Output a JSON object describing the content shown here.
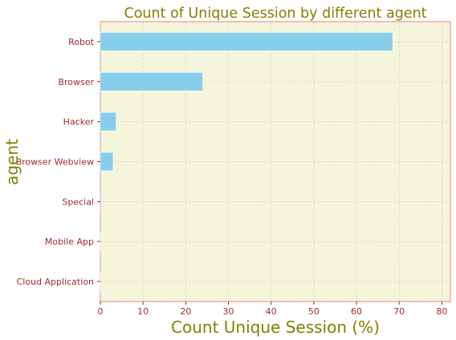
{
  "colors": {
    "plot_bg": "#f5f5dc",
    "plot_border": "#f4a6a6",
    "bar_fill": "#87ceeb",
    "special_bar_fill": "#b0c4de",
    "title_color": "#808000",
    "tick_color": "#a52a2a",
    "grid_color": "#c8dcc0"
  },
  "chart_data": {
    "type": "bar",
    "orientation": "horizontal",
    "title": "Count of Unique Session by different agent",
    "xlabel": "Count Unique Session (%)",
    "ylabel": "agent",
    "categories": [
      "Robot",
      "Browser",
      "Hacker",
      "Browser Webview",
      "Special",
      "Mobile App",
      "Cloud Application"
    ],
    "values": [
      68.5,
      24.0,
      3.7,
      3.0,
      0.3,
      0.1,
      0.05
    ],
    "xlim": [
      0,
      82
    ],
    "xticks": [
      0,
      10,
      20,
      30,
      40,
      50,
      60,
      70,
      80
    ],
    "grid": true,
    "legend": "none"
  }
}
